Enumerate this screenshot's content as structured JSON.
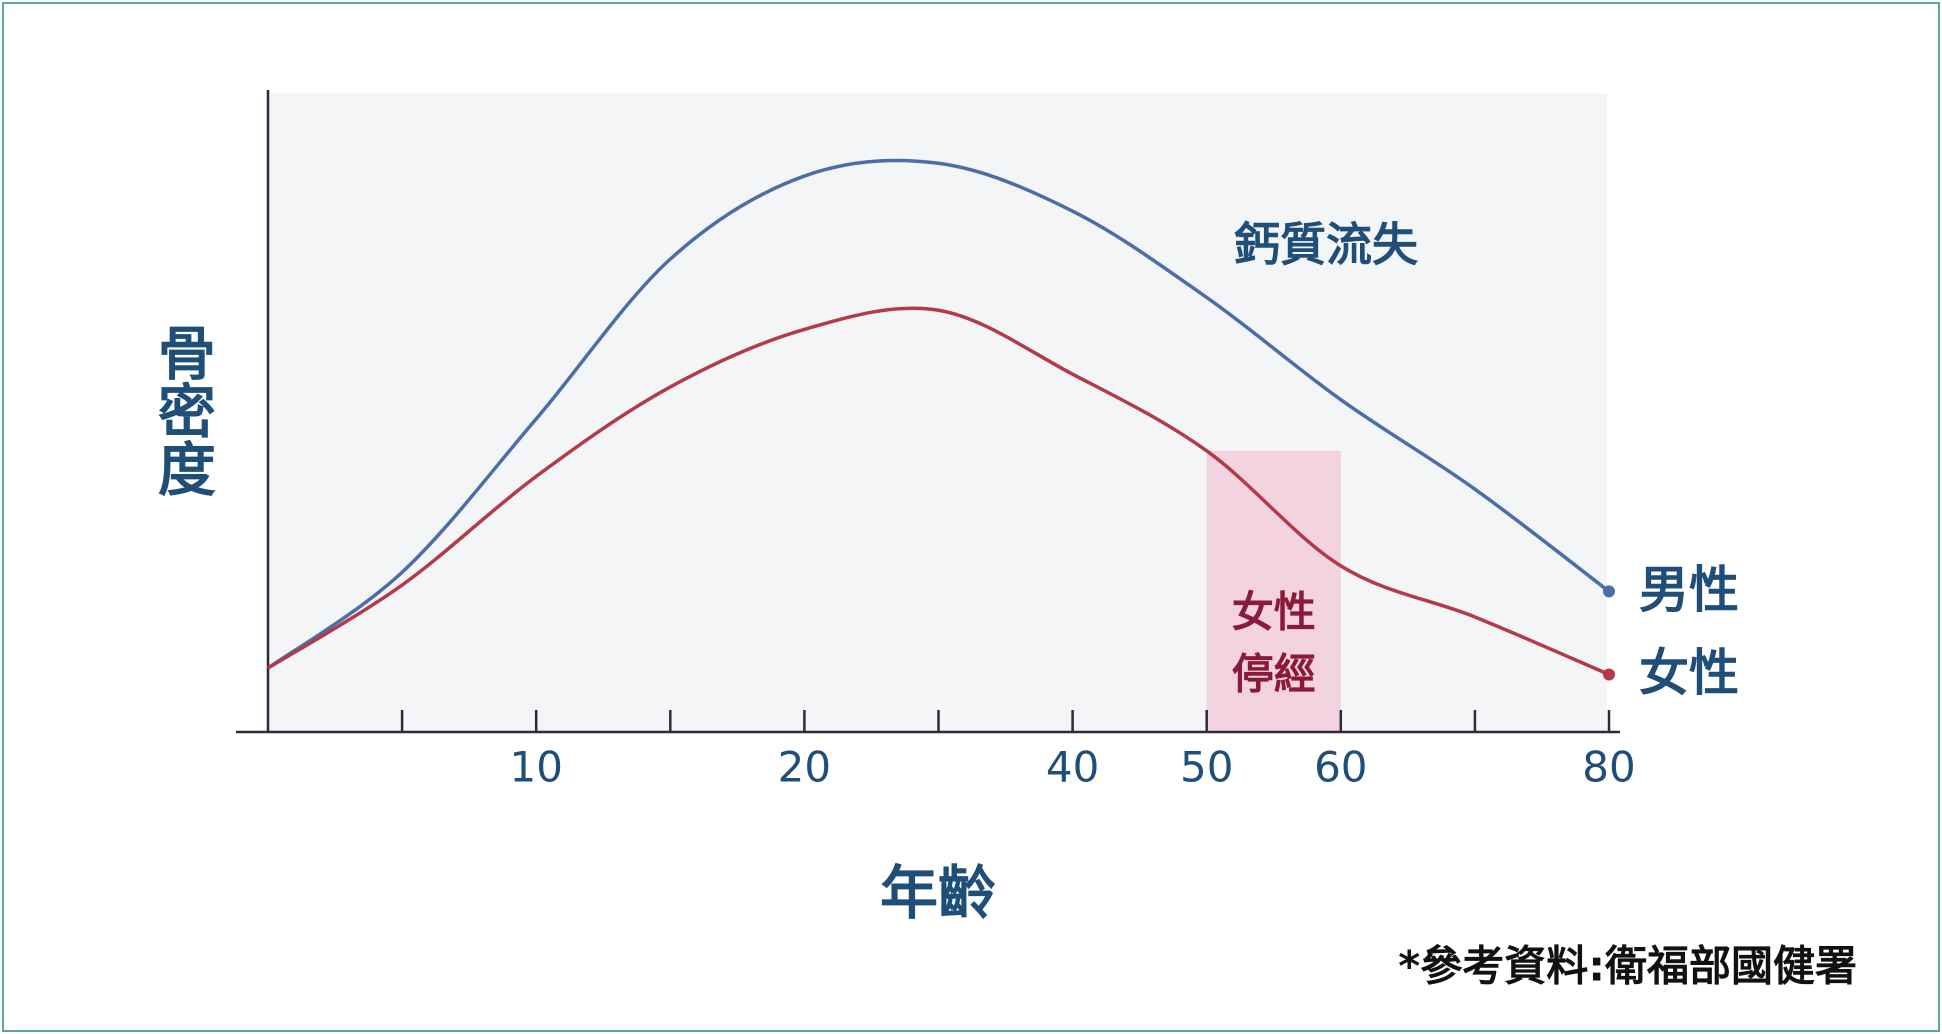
{
  "chart_data": {
    "type": "line",
    "y_label": "骨密度",
    "x_label": "年齡",
    "annotation": "鈣質流失",
    "source": "*參考資料:衛福部國健署",
    "categories": [
      null,
      null,
      "10",
      null,
      "20",
      null,
      "40",
      "50",
      "60",
      null,
      "80"
    ],
    "series": [
      {
        "name": "男性",
        "color": "#4b6ea6",
        "values": [
          10,
          25,
          49,
          74,
          87,
          89,
          81.5,
          68,
          52,
          38,
          22
        ]
      },
      {
        "name": "女性",
        "color": "#b23a4a",
        "values": [
          10,
          23,
          40,
          54,
          63,
          66,
          56,
          44,
          26,
          18,
          9
        ]
      }
    ],
    "ylim": [
      0,
      100
    ],
    "smooth": true,
    "band": {
      "label_lines": [
        "女性",
        "停經"
      ],
      "categories": [
        "50",
        "60"
      ],
      "color": "#f2d3df"
    }
  }
}
